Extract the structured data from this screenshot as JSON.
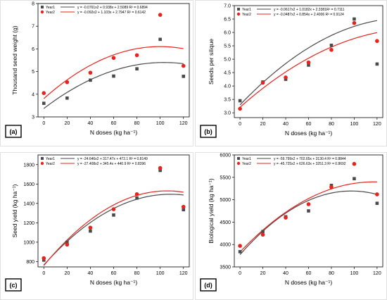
{
  "chart_data": [
    {
      "type": "scatter",
      "panel_label": "(a)",
      "xlabel": "N doses (kg ha⁻¹)",
      "ylabel": "Thousand seed weight (g)",
      "xlim": [
        -5,
        125
      ],
      "ylim": [
        3,
        8
      ],
      "xticks": [
        0,
        20,
        40,
        60,
        80,
        100,
        120
      ],
      "yticks": [
        3,
        4,
        5,
        6,
        7,
        8
      ],
      "legend_position": "top-left",
      "series": [
        {
          "name": "Year1",
          "color": "#4a4a4a",
          "marker": "square",
          "x": [
            0,
            20,
            40,
            60,
            80,
            100,
            120
          ],
          "y": [
            3.6,
            3.83,
            4.62,
            4.8,
            5.12,
            6.42,
            4.79
          ],
          "fit_label": "y = -0.0761x2 + 0.938x + 2.5089 R² = 0.6894",
          "fit": {
            "a": -0.0761,
            "b": 0.938,
            "c": 2.5089
          }
        },
        {
          "name": "Year2",
          "color": "#e8231c",
          "marker": "circle",
          "x": [
            0,
            20,
            40,
            60,
            80,
            100,
            120
          ],
          "y": [
            4.05,
            4.53,
            4.95,
            5.6,
            5.72,
            7.5,
            5.25
          ],
          "fit_label": "y = -0.092x2 + 1.103x + 2.7947 R² = 0.6142",
          "fit": {
            "a": -0.092,
            "b": 1.103,
            "c": 2.7947
          }
        }
      ]
    },
    {
      "type": "scatter",
      "panel_label": "(b)",
      "xlabel": "N doses (kg ha⁻¹)",
      "ylabel": "Seeds per silique",
      "xlim": [
        -5,
        125
      ],
      "ylim": [
        2.82,
        7.0
      ],
      "xticks": [
        0,
        20,
        40,
        60,
        80,
        100,
        120
      ],
      "yticks": [
        3.0,
        3.5,
        4.0,
        4.5,
        5.0,
        5.5,
        6.0,
        6.5,
        7.0
      ],
      "legend_position": "top-left",
      "series": [
        {
          "name": "Year1",
          "color": "#4a4a4a",
          "marker": "square",
          "x": [
            0,
            20,
            40,
            60,
            80,
            100,
            120
          ],
          "y": [
            3.45,
            4.15,
            4.25,
            4.78,
            5.52,
            6.5,
            4.82
          ],
          "fit_label": "y = -0.0617x2 + 1.0182x + 2.3381R² = 0.7111",
          "fit": {
            "a": -0.0617,
            "b": 1.0182,
            "c": 2.3381
          }
        },
        {
          "name": "Year2",
          "color": "#e8231c",
          "marker": "circle",
          "x": [
            0,
            20,
            40,
            60,
            80,
            100,
            120
          ],
          "y": [
            3.15,
            4.12,
            4.32,
            4.88,
            5.35,
            6.35,
            5.68
          ],
          "fit_label": "y = -0.0487x2 + 0.854x + 2.4006 R² = 0.9124",
          "fit": {
            "a": -0.0487,
            "b": 0.854,
            "c": 2.4006
          }
        }
      ]
    },
    {
      "type": "scatter",
      "panel_label": "(c)",
      "xlabel": "N doses (kg ha⁻¹)",
      "ylabel": "Seed yield (kg ha⁻¹)",
      "xlim": [
        -5,
        125
      ],
      "ylim": [
        745,
        1900
      ],
      "xticks": [
        0,
        20,
        40,
        60,
        80,
        100,
        120
      ],
      "yticks": [
        800,
        1000,
        1200,
        1400,
        1600,
        1800
      ],
      "legend_position": "top-left",
      "series": [
        {
          "name": "Year1",
          "color": "#4a4a4a",
          "marker": "square",
          "x": [
            0,
            20,
            40,
            60,
            80,
            100,
            120
          ],
          "y": [
            815,
            1000,
            1115,
            1280,
            1455,
            1740,
            1335
          ],
          "fit_label": "y = -24.646x2 + 317.47x + 472.1 R² = 0.8149",
          "fit": {
            "a": -24.646,
            "b": 317.47,
            "c": 472.1
          }
        },
        {
          "name": "Year2",
          "color": "#e8231c",
          "marker": "circle",
          "x": [
            0,
            20,
            40,
            60,
            80,
            100,
            120
          ],
          "y": [
            835,
            975,
            1150,
            1340,
            1495,
            1765,
            1365
          ],
          "fit_label": "y = -27.408x2 + 345.4x + 440.9 R² = 0.8396",
          "fit": {
            "a": -27.408,
            "b": 345.4,
            "c": 440.9
          }
        }
      ]
    },
    {
      "type": "scatter",
      "panel_label": "(d)",
      "xlabel": "N doses (kg ha⁻¹)",
      "ylabel": "Biological yield (kg ha⁻¹)",
      "xlim": [
        -5,
        125
      ],
      "ylim": [
        3500,
        6000
      ],
      "xticks": [
        0,
        20,
        40,
        60,
        80,
        100,
        120
      ],
      "yticks": [
        3500,
        4000,
        4500,
        5000,
        5500,
        6000
      ],
      "legend_position": "top-left",
      "series": [
        {
          "name": "Year1",
          "color": "#4a4a4a",
          "marker": "square",
          "x": [
            0,
            20,
            40,
            60,
            80,
            100,
            120
          ],
          "y": [
            3840,
            4290,
            4620,
            4750,
            5320,
            5470,
            4920
          ],
          "fit_label": "y = -59.799x2 + 702.65x + 3130.4 R² = 0.8844",
          "fit": {
            "a": -59.799,
            "b": 702.65,
            "c": 3130.4
          }
        },
        {
          "name": "Year2",
          "color": "#e8231c",
          "marker": "circle",
          "x": [
            0,
            20,
            40,
            60,
            80,
            100,
            120
          ],
          "y": [
            3970,
            4220,
            4600,
            4900,
            5280,
            5800,
            5120
          ],
          "fit_label": "y = -45.725x2 + 626.63x + 3251.3 R² = 0.8692",
          "fit": {
            "a": -45.725,
            "b": 626.63,
            "c": 3251.3
          }
        }
      ]
    }
  ]
}
